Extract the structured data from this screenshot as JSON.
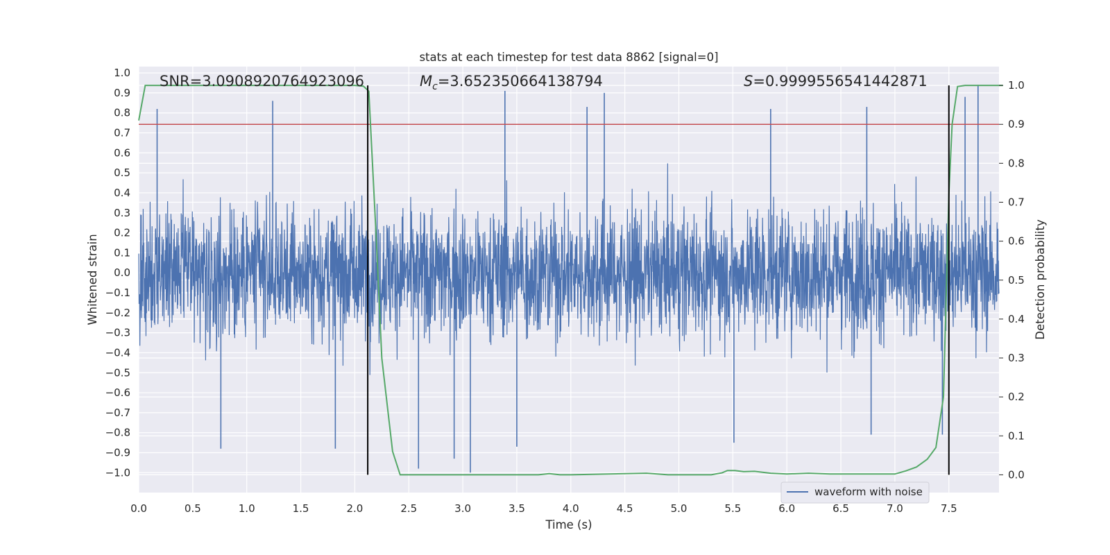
{
  "chart_data": {
    "type": "line",
    "title": "stats at each timestep for test data 8862 [signal=0]",
    "xlabel": "Time (s)",
    "ylabel_left": "Whitened strain",
    "ylabel_right": "Detection probability",
    "xlim": [
      0.0,
      8.0
    ],
    "ylim_left": [
      -1.1,
      1.05
    ],
    "ylim_right": [
      -0.045,
      1.05
    ],
    "x_ticks": [
      0.0,
      0.5,
      1.0,
      1.5,
      2.0,
      2.5,
      3.0,
      3.5,
      4.0,
      4.5,
      5.0,
      5.5,
      6.0,
      6.5,
      7.0,
      7.5
    ],
    "x_tick_labels": [
      "0.0",
      "0.5",
      "1.0",
      "1.5",
      "2.0",
      "2.5",
      "3.0",
      "3.5",
      "4.0",
      "4.5",
      "5.0",
      "5.5",
      "6.0",
      "6.5",
      "7.0",
      "7.5"
    ],
    "y_left_ticks": [
      -1.0,
      -0.9,
      -0.8,
      -0.7,
      -0.6,
      -0.5,
      -0.4,
      -0.3,
      -0.2,
      -0.1,
      0.0,
      0.1,
      0.2,
      0.3,
      0.4,
      0.5,
      0.6,
      0.7,
      0.8,
      0.9,
      1.0
    ],
    "y_left_tick_labels": [
      "−1.0",
      "−0.9",
      "−0.8",
      "−0.7",
      "−0.6",
      "−0.5",
      "−0.4",
      "−0.3",
      "−0.2",
      "−0.1",
      "0.0",
      "0.1",
      "0.2",
      "0.3",
      "0.4",
      "0.5",
      "0.6",
      "0.7",
      "0.8",
      "0.9",
      "1.0"
    ],
    "y_right_ticks": [
      0.0,
      0.1,
      0.2,
      0.3,
      0.4,
      0.5,
      0.6,
      0.7,
      0.8,
      0.9,
      1.0
    ],
    "y_right_tick_labels": [
      "0.0",
      "0.1",
      "0.2",
      "0.3",
      "0.4",
      "0.5",
      "0.6",
      "0.7",
      "0.8",
      "0.9",
      "1.0"
    ],
    "annotations": {
      "snr": "SNR=3.0908920764923096",
      "mc_symbol": "M",
      "mc_sub": "c",
      "mc_value": "=3.652350664138794",
      "s_symbol": "S",
      "s_value": "=0.9999556541442871"
    },
    "series": [
      {
        "name": "waveform with noise",
        "axis": "left",
        "color": "#4c72b0",
        "note": "dense whitened-strain noise, roughly within ±0.45 with spikes up to 0.9 / down to -1.0",
        "peaks": [
          {
            "x": 0.17,
            "y": 0.82
          },
          {
            "x": 1.24,
            "y": 0.86
          },
          {
            "x": 3.39,
            "y": 0.91
          },
          {
            "x": 4.31,
            "y": 0.9
          },
          {
            "x": 4.15,
            "y": 0.83
          },
          {
            "x": 7.77,
            "y": 0.94
          },
          {
            "x": 7.65,
            "y": 0.88
          },
          {
            "x": 6.74,
            "y": 0.83
          },
          {
            "x": 5.85,
            "y": 0.82
          }
        ],
        "troughs": [
          {
            "x": 0.76,
            "y": -0.88
          },
          {
            "x": 2.59,
            "y": -0.98
          },
          {
            "x": 3.07,
            "y": -1.0
          },
          {
            "x": 2.92,
            "y": -0.93
          },
          {
            "x": 1.82,
            "y": -0.88
          },
          {
            "x": 3.5,
            "y": -0.87
          },
          {
            "x": 5.51,
            "y": -0.85
          },
          {
            "x": 6.78,
            "y": -0.81
          },
          {
            "x": 7.44,
            "y": -0.81
          }
        ]
      },
      {
        "name": "",
        "axis": "right",
        "color": "#55a868",
        "x": [
          0.0,
          0.06,
          0.3,
          0.6,
          1.0,
          1.5,
          2.0,
          2.08,
          2.13,
          2.2,
          2.25,
          2.35,
          2.42,
          2.5,
          3.0,
          3.5,
          3.7,
          3.8,
          3.9,
          4.0,
          4.5,
          4.7,
          4.9,
          5.3,
          5.4,
          5.45,
          5.52,
          5.6,
          5.7,
          5.85,
          6.0,
          6.2,
          6.4,
          6.7,
          7.0,
          7.1,
          7.2,
          7.3,
          7.38,
          7.45,
          7.5,
          7.53,
          7.58,
          7.65,
          8.0
        ],
        "y": [
          0.91,
          1.0,
          1.0,
          1.0,
          1.0,
          1.0,
          1.0,
          0.998,
          0.985,
          0.6,
          0.3,
          0.06,
          0.0,
          0.0,
          0.0,
          0.0,
          0.0,
          0.003,
          0.0,
          0.0,
          0.003,
          0.004,
          0.0,
          0.0,
          0.005,
          0.011,
          0.011,
          0.008,
          0.009,
          0.004,
          0.002,
          0.004,
          0.002,
          0.002,
          0.002,
          0.01,
          0.02,
          0.04,
          0.07,
          0.2,
          0.72,
          0.9,
          0.997,
          1.0,
          1.0
        ]
      },
      {
        "name": "",
        "axis": "right",
        "color": "#c44e52",
        "note": "horizontal threshold line",
        "x": [
          0.0,
          8.0
        ],
        "y": [
          0.9,
          0.9
        ]
      }
    ],
    "vlines": [
      {
        "x": 2.12,
        "color": "#000000",
        "y_range_right": [
          0.0,
          1.0
        ]
      },
      {
        "x": 7.5,
        "color": "#000000",
        "y_range_right": [
          0.0,
          1.0
        ]
      }
    ],
    "legend": {
      "placement": "lower-right",
      "entries": [
        {
          "label": "waveform with noise",
          "color": "#4c72b0"
        }
      ]
    },
    "style": {
      "axes_bg": "#eaeaf2",
      "grid": true,
      "grid_color": "#ffffff"
    }
  }
}
